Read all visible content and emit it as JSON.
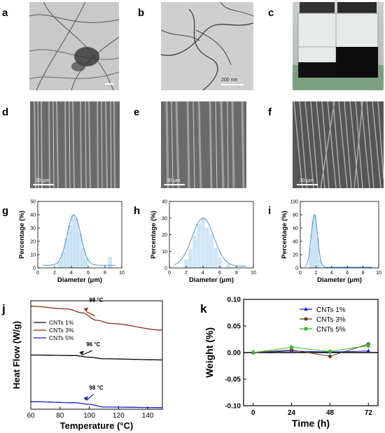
{
  "panels": {
    "a": "a",
    "b": "b",
    "c": "c",
    "d": "d",
    "e": "e",
    "f": "f",
    "g": "g",
    "h": "h",
    "i": "i",
    "j": "j",
    "k": "k"
  },
  "scalebars": {
    "b": "200 nm",
    "d": "30 μm",
    "e": "30 μm",
    "f": "30 μm"
  },
  "chart_data": [
    {
      "id": "g",
      "type": "bar",
      "xlabel": "Diameter (μm)",
      "ylabel": "Percentage (%)",
      "xlim": [
        0,
        10
      ],
      "ylim": [
        0,
        50
      ],
      "xticks": [
        "0",
        "2",
        "4",
        "6",
        "8",
        "10"
      ],
      "yticks": [
        "0",
        "10",
        "20",
        "30",
        "40",
        "50"
      ],
      "bars": [
        {
          "x": 2.6,
          "y": 5
        },
        {
          "x": 3.0,
          "y": 12
        },
        {
          "x": 3.4,
          "y": 22
        },
        {
          "x": 3.8,
          "y": 32
        },
        {
          "x": 4.2,
          "y": 40
        },
        {
          "x": 4.6,
          "y": 37
        },
        {
          "x": 5.0,
          "y": 26
        },
        {
          "x": 5.4,
          "y": 15
        },
        {
          "x": 5.8,
          "y": 7
        },
        {
          "x": 8.6,
          "y": 8
        }
      ],
      "fit": {
        "type": "gaussian",
        "mean": 4.3,
        "sigma": 0.8,
        "peak": 40,
        "base": 2
      }
    },
    {
      "id": "h",
      "type": "bar",
      "xlabel": "Diameter (μm)",
      "ylabel": "Percentage (%)",
      "xlim": [
        0,
        10
      ],
      "ylim": [
        0,
        40
      ],
      "xticks": [
        "0",
        "2",
        "4",
        "6",
        "8",
        "10"
      ],
      "yticks": [
        "0",
        "10",
        "20",
        "30",
        "40"
      ],
      "bars": [
        {
          "x": 2.0,
          "y": 5
        },
        {
          "x": 2.5,
          "y": 11
        },
        {
          "x": 3.0,
          "y": 19
        },
        {
          "x": 3.5,
          "y": 26
        },
        {
          "x": 4.0,
          "y": 30
        },
        {
          "x": 4.5,
          "y": 24
        },
        {
          "x": 5.0,
          "y": 20
        },
        {
          "x": 5.5,
          "y": 12
        },
        {
          "x": 6.0,
          "y": 6
        },
        {
          "x": 7.0,
          "y": 2
        }
      ],
      "fit": {
        "type": "gaussian",
        "mean": 4.0,
        "sigma": 1.3,
        "peak": 30,
        "base": 1
      }
    },
    {
      "id": "i",
      "type": "bar",
      "xlabel": "Diameter (μm)",
      "ylabel": "Percentage (%)",
      "xlim": [
        0,
        10
      ],
      "ylim": [
        0,
        100
      ],
      "xticks": [
        "0",
        "2",
        "4",
        "6",
        "8",
        "10"
      ],
      "yticks": [
        "0",
        "20",
        "40",
        "60",
        "80",
        "100"
      ],
      "bars": [
        {
          "x": 1.3,
          "y": 30
        },
        {
          "x": 1.6,
          "y": 70
        },
        {
          "x": 1.9,
          "y": 80
        },
        {
          "x": 2.2,
          "y": 45
        },
        {
          "x": 2.5,
          "y": 12
        }
      ],
      "fit": {
        "type": "gaussian",
        "mean": 1.8,
        "sigma": 0.4,
        "peak": 80,
        "base": 1
      }
    },
    {
      "id": "j",
      "type": "line",
      "xlabel": "Temperature (°C)",
      "ylabel": "Heat Flow (W/g)",
      "xlim": [
        60,
        150
      ],
      "xticks": [
        "60",
        "80",
        "100",
        "120",
        "140"
      ],
      "legend_position": "top-left",
      "series": [
        {
          "name": "CNTs 1%",
          "color": "#000000",
          "annotation": "96 °C",
          "points": [
            [
              60,
              0.5
            ],
            [
              90,
              0.495
            ],
            [
              100,
              0.48
            ],
            [
              110,
              0.465
            ],
            [
              150,
              0.455
            ]
          ]
        },
        {
          "name": "CNTs 3%",
          "color": "#8a2d10",
          "annotation": "98 °C",
          "points": [
            [
              60,
              0.95
            ],
            [
              85,
              0.925
            ],
            [
              95,
              0.89
            ],
            [
              105,
              0.82
            ],
            [
              115,
              0.79
            ],
            [
              150,
              0.73
            ]
          ]
        },
        {
          "name": "CNTs 5%",
          "color": "#1a1acc",
          "annotation": "98 °C",
          "points": [
            [
              60,
              0.07
            ],
            [
              90,
              0.06
            ],
            [
              100,
              0.045
            ],
            [
              110,
              0.02
            ],
            [
              150,
              0.015
            ]
          ]
        }
      ]
    },
    {
      "id": "k",
      "type": "line",
      "xlabel": "Time (h)",
      "ylabel": "Weight (%)",
      "xlim": [
        -6,
        78
      ],
      "ylim": [
        -0.1,
        0.1
      ],
      "xticks": [
        "0",
        "24",
        "48",
        "72"
      ],
      "yticks": [
        "0.10",
        "0.05",
        "0.00",
        "-0.05",
        "-0.10"
      ],
      "legend_position": "top-right",
      "series": [
        {
          "name": "CNTs 1%",
          "color": "#1a1acc",
          "marker": "triangle",
          "points": [
            [
              0,
              0.0
            ],
            [
              24,
              0.003
            ],
            [
              48,
              0.001
            ],
            [
              72,
              0.003
            ]
          ]
        },
        {
          "name": "CNTs 3%",
          "color": "#5a3a10",
          "marker": "circle",
          "points": [
            [
              0,
              0.0
            ],
            [
              24,
              0.005
            ],
            [
              48,
              -0.007
            ],
            [
              72,
              0.016
            ]
          ]
        },
        {
          "name": "CNTs 5%",
          "color": "#33bb22",
          "marker": "square",
          "points": [
            [
              0,
              0.0
            ],
            [
              24,
              0.01
            ],
            [
              48,
              0.002
            ],
            [
              72,
              0.013
            ]
          ]
        }
      ]
    }
  ]
}
